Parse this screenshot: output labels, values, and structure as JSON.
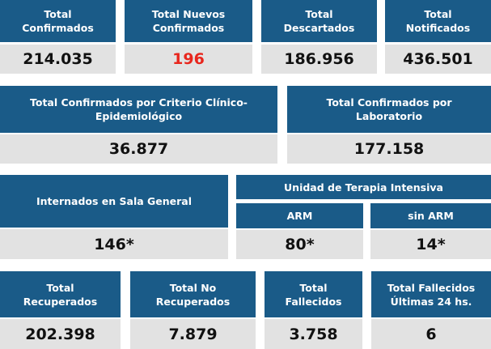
{
  "row1": [
    {
      "label": "Total\nConfirmados",
      "value": "214.035"
    },
    {
      "label": "Total Nuevos\nConfirmados",
      "value": "196",
      "highlight": "#e8261d"
    },
    {
      "label": "Total\nDescartados",
      "value": "186.956"
    },
    {
      "label": "Total\nNotificados",
      "value": "436.501"
    }
  ],
  "row2": [
    {
      "label": "Total Confirmados por Criterio Clínico-\nEpidemiológico",
      "value": "36.877"
    },
    {
      "label": "Total Confirmados por\nLaboratorio",
      "value": "177.158"
    }
  ],
  "row3": {
    "sala_general": {
      "label": "Internados en Sala General",
      "value": "146*"
    },
    "uti": {
      "label": "Unidad de Terapia Intensiva",
      "arm": {
        "label": "ARM",
        "value": "80*"
      },
      "sin_arm": {
        "label": "sin ARM",
        "value": "14*"
      }
    }
  },
  "row4": [
    {
      "label": "Total\nRecuperados",
      "value": "202.398"
    },
    {
      "label": "Total No\nRecuperados",
      "value": "7.879"
    },
    {
      "label": "Total\nFallecidos",
      "value": "3.758"
    },
    {
      "label": "Total Fallecidos\nÚltimas 24 hs.",
      "value": "6"
    }
  ],
  "colors": {
    "header": "#1a5b88",
    "value_bg": "#e2e2e2",
    "highlight": "#e8261d"
  }
}
